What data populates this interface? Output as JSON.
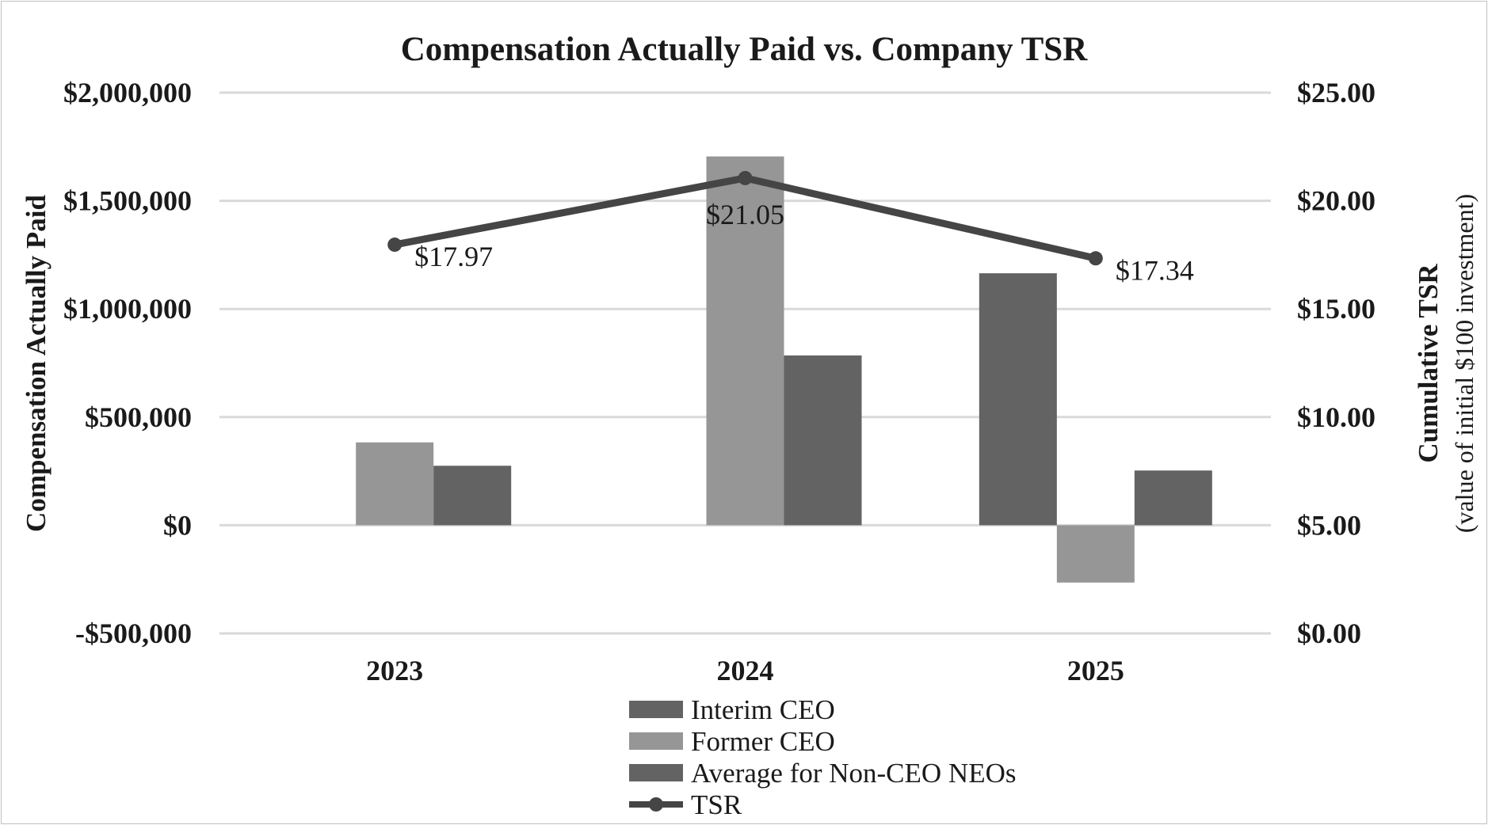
{
  "chart_data": {
    "type": "bar",
    "title": "Compensation Actually Paid vs. Company TSR",
    "categories": [
      "2023",
      "2024",
      "2025"
    ],
    "ylabel": "Compensation Actually Paid",
    "y2label": "Cumulative TSR",
    "y2label_sub": "(value of initial $100 investment)",
    "ylim": [
      -500000,
      2000000
    ],
    "y2lim": [
      0,
      25
    ],
    "yticks": [
      {
        "value": 2000000,
        "label": "$2,000,000"
      },
      {
        "value": 1500000,
        "label": "$1,500,000"
      },
      {
        "value": 1000000,
        "label": "$1,000,000"
      },
      {
        "value": 500000,
        "label": "$500,000"
      },
      {
        "value": 0,
        "label": "$0"
      },
      {
        "value": -500000,
        "label": "-$500,000"
      }
    ],
    "y2ticks": [
      {
        "value": 25,
        "label": "$25.00"
      },
      {
        "value": 20,
        "label": "$20.00"
      },
      {
        "value": 15,
        "label": "$15.00"
      },
      {
        "value": 10,
        "label": "$10.00"
      },
      {
        "value": 5,
        "label": "$5.00"
      },
      {
        "value": 0,
        "label": "$0.00"
      }
    ],
    "grid": true,
    "legend_position": "bottom",
    "series": [
      {
        "name": "Interim CEO",
        "type": "bar",
        "color": "#636363",
        "values": [
          null,
          null,
          1165000
        ]
      },
      {
        "name": "Former CEO",
        "type": "bar",
        "color": "#969696",
        "values": [
          383000,
          1705000,
          -265000
        ]
      },
      {
        "name": "Average for Non-CEO NEOs",
        "type": "bar",
        "color": "#636363",
        "values": [
          275000,
          785000,
          253000
        ]
      },
      {
        "name": "TSR",
        "type": "line",
        "axis": "right",
        "color": "#454545",
        "values": [
          17.97,
          21.05,
          17.34
        ],
        "labels": [
          "$17.97",
          "$21.05",
          "$17.34"
        ]
      }
    ]
  }
}
